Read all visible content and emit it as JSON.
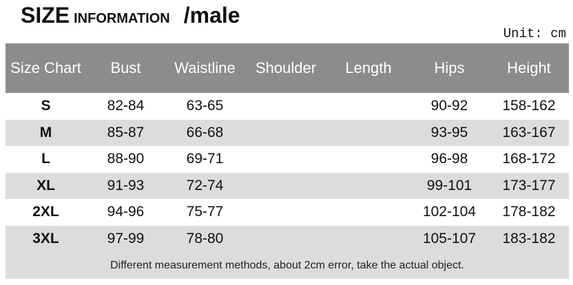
{
  "header": {
    "title": "SIZE",
    "subtitle": "INFORMATION",
    "suffix": "/male",
    "unit": "Unit: cm"
  },
  "table": {
    "columns": [
      "Size Chart",
      "Bust",
      "Waistline",
      "Shoulder",
      "Length",
      "Hips",
      "Height"
    ],
    "rows": [
      {
        "size": "S",
        "bust": "82-84",
        "waistline": "63-65",
        "hips": "90-92",
        "height": "158-162"
      },
      {
        "size": "M",
        "bust": "85-87",
        "waistline": "66-68",
        "hips": "93-95",
        "height": "163-167"
      },
      {
        "size": "L",
        "bust": "88-90",
        "waistline": "69-71",
        "hips": "96-98",
        "height": "168-172"
      },
      {
        "size": "XL",
        "bust": "91-93",
        "waistline": "72-74",
        "hips": "99-101",
        "height": "173-177"
      },
      {
        "size": "2XL",
        "bust": "94-96",
        "waistline": "75-77",
        "hips": "102-104",
        "height": "178-182"
      },
      {
        "size": "3XL",
        "bust": "97-99",
        "waistline": "78-80",
        "hips": "105-107",
        "height": "183-182"
      }
    ],
    "note": "Different measurement methods, about 2cm error, take the actual object."
  }
}
